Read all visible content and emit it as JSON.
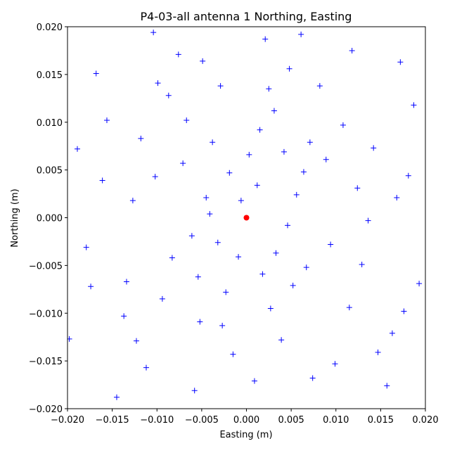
{
  "chart_data": {
    "type": "scatter",
    "title": "P4-03-all antenna 1 Northing, Easting",
    "x_label": "Easting (m)",
    "y_label": "Northing (m)",
    "xlim": [
      -0.02,
      0.02
    ],
    "ylim": [
      -0.02,
      0.02
    ],
    "xticks": [
      {
        "value": -0.02,
        "label": "−0.020"
      },
      {
        "value": -0.015,
        "label": "−0.015"
      },
      {
        "value": -0.01,
        "label": "−0.010"
      },
      {
        "value": -0.005,
        "label": "−0.005"
      },
      {
        "value": 0,
        "label": "0.000"
      },
      {
        "value": 0.005,
        "label": "0.005"
      },
      {
        "value": 0.01,
        "label": "0.010"
      },
      {
        "value": 0.015,
        "label": "0.015"
      },
      {
        "value": 0.02,
        "label": "0.020"
      }
    ],
    "yticks": [
      {
        "value": -0.02,
        "label": "−0.020"
      },
      {
        "value": -0.015,
        "label": "−0.015"
      },
      {
        "value": -0.01,
        "label": "−0.010"
      },
      {
        "value": -0.005,
        "label": "−0.005"
      },
      {
        "value": 0,
        "label": "0.000"
      },
      {
        "value": 0.005,
        "label": "0.005"
      },
      {
        "value": 0.01,
        "label": "0.010"
      },
      {
        "value": 0.015,
        "label": "0.015"
      },
      {
        "value": 0.02,
        "label": "0.020"
      }
    ],
    "series": [
      {
        "color": "#0000ff",
        "marker": "+",
        "x": [
          0.0012,
          -0.0045,
          0.0067,
          -0.0023,
          0.0089,
          -0.0102,
          0.0031,
          -0.0061,
          0.0115,
          -0.0134,
          0.0048,
          -0.0087,
          0.0142,
          -0.0015,
          0.0074,
          -0.0156,
          0.0163,
          -0.0112,
          0.0021,
          -0.0038,
          0.0056,
          -0.0071,
          0.0094,
          -0.0009,
          0.0027,
          -0.0052,
          0.0108,
          -0.0127,
          0.0136,
          -0.0179,
          0.0181,
          -0.0168,
          0.0172,
          -0.0145,
          0.0157,
          0.0003,
          -0.0029,
          0.0039,
          -0.0094,
          0.0082,
          -0.0189,
          0.0193,
          -0.0076,
          0.0061,
          -0.0058,
          0.0018,
          -0.0118,
          0.0124,
          -0.0041,
          0.0046,
          -0.0198,
          0.0187,
          -0.0104,
          0.0099,
          -0.0032,
          0.0015,
          -0.0067,
          0.0071,
          -0.0083,
          0.0052,
          -0.0019,
          0.0033,
          -0.0137,
          0.0147,
          -0.0161,
          0.0168,
          -0.0174,
          0.0176,
          -0.0049,
          0.0025,
          0.0009,
          -0.0099,
          0.0118,
          -0.0123,
          0.0129,
          -0.0006,
          0.0064,
          -0.0054,
          0.0042,
          -0.0027
        ],
        "values": [
          0.0034,
          0.0021,
          -0.0052,
          -0.0078,
          0.0061,
          0.0043,
          0.0112,
          -0.0019,
          -0.0094,
          -0.0067,
          0.0156,
          0.0128,
          0.0073,
          -0.0143,
          -0.0168,
          0.0102,
          -0.0121,
          -0.0157,
          0.0187,
          0.0079,
          0.0024,
          0.0057,
          -0.0028,
          -0.0041,
          -0.0095,
          -0.0109,
          0.0097,
          0.0018,
          -0.0003,
          -0.0031,
          0.0044,
          0.0151,
          0.0163,
          -0.0188,
          -0.0176,
          0.0066,
          0.0138,
          -0.0128,
          -0.0085,
          0.0138,
          0.0072,
          -0.0069,
          0.0171,
          0.0192,
          -0.0181,
          -0.0059,
          0.0083,
          0.0031,
          0.0004,
          -0.0008,
          -0.0127,
          0.0118,
          0.0194,
          -0.0153,
          -0.0026,
          0.0092,
          0.0102,
          0.0079,
          -0.0042,
          -0.0071,
          0.0047,
          -0.0037,
          -0.0103,
          -0.0141,
          0.0039,
          0.0021,
          -0.0072,
          -0.0098,
          0.0164,
          0.0135,
          -0.0171,
          0.0141,
          0.0175,
          -0.0129,
          -0.0049,
          0.0018,
          0.0048,
          -0.0062,
          0.0069,
          -0.0113
        ]
      },
      {
        "color": "#ff0000",
        "marker": "o",
        "x": [
          0
        ],
        "values": [
          0
        ]
      }
    ]
  }
}
